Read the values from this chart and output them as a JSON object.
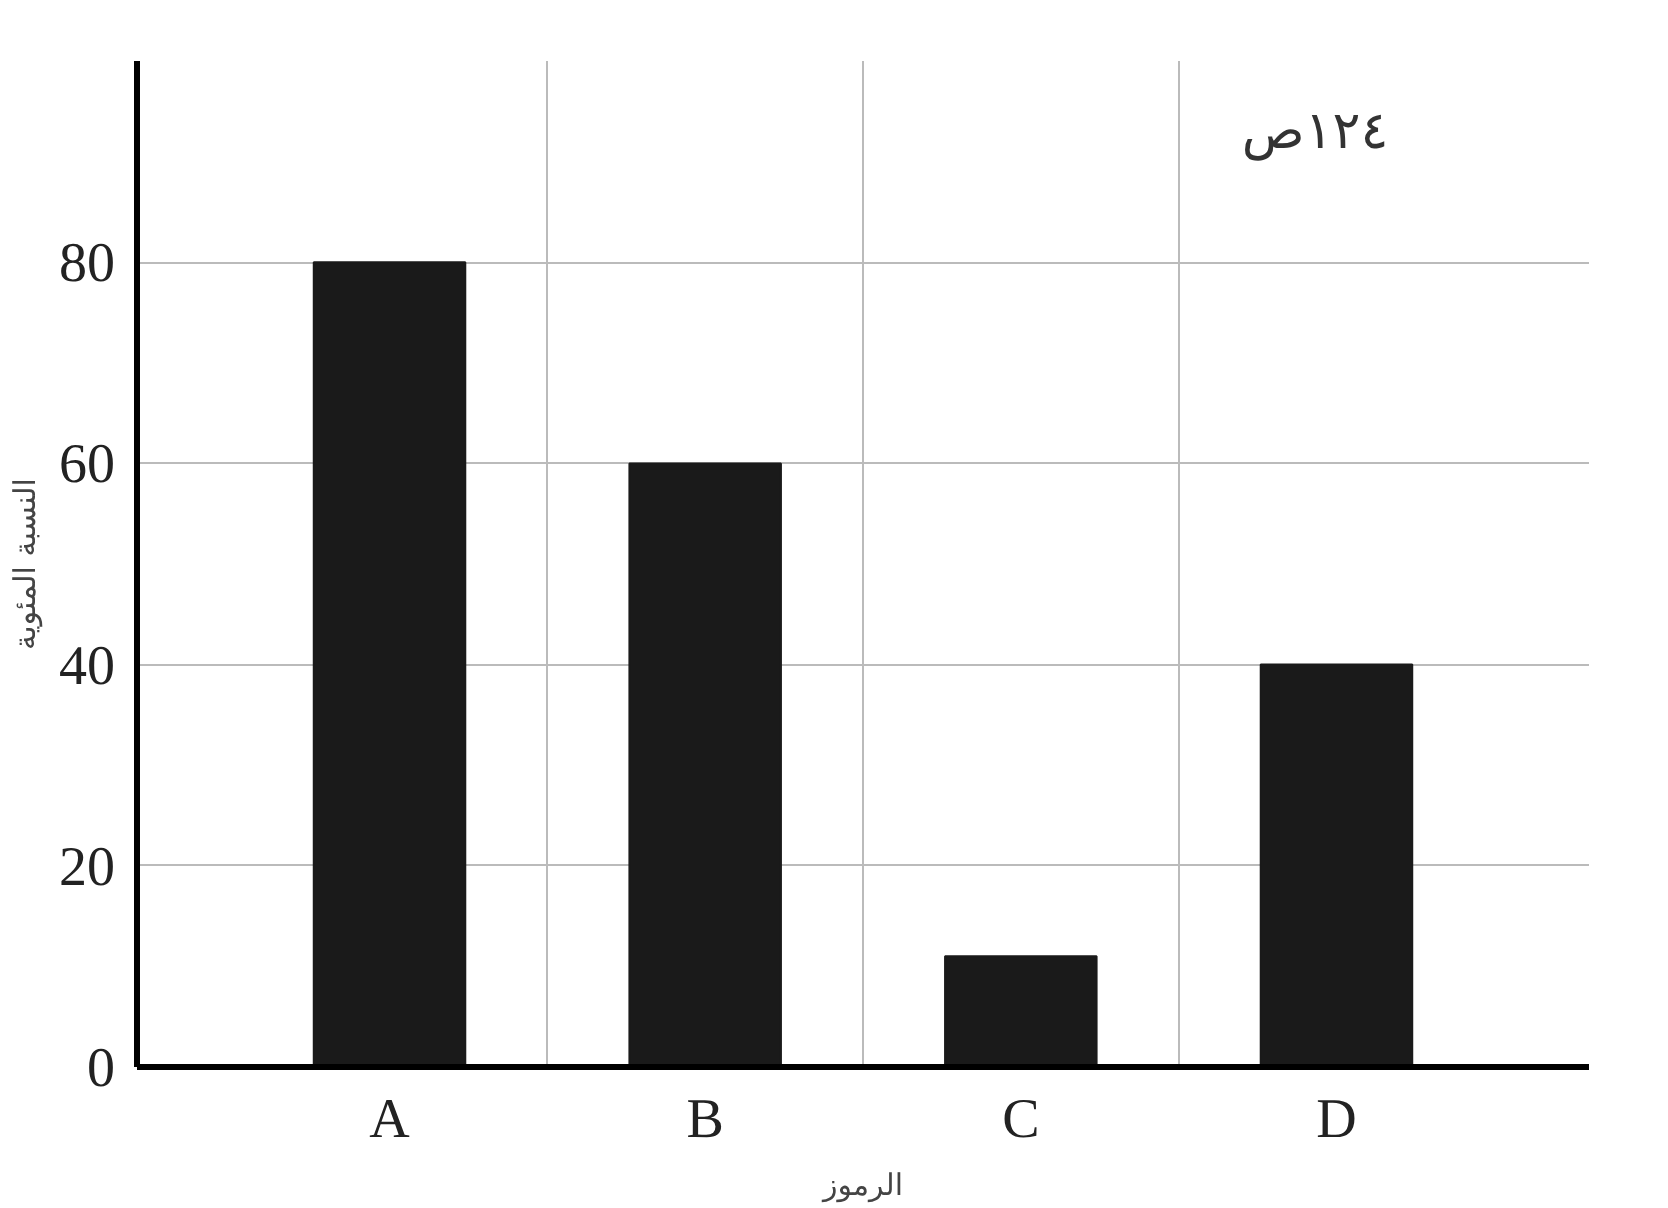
{
  "chart_data": {
    "type": "bar",
    "categories": [
      "A",
      "B",
      "C",
      "D"
    ],
    "values": [
      80,
      60,
      11,
      40
    ],
    "color": "#1a1a1a",
    "ylim": [
      0,
      100
    ],
    "yticks": [
      0,
      20,
      40,
      60,
      80
    ],
    "xlabel": "الرموز",
    "ylabel": "النسبة المئوية",
    "annotations": [
      "١٢٤ص"
    ],
    "grid": true
  }
}
